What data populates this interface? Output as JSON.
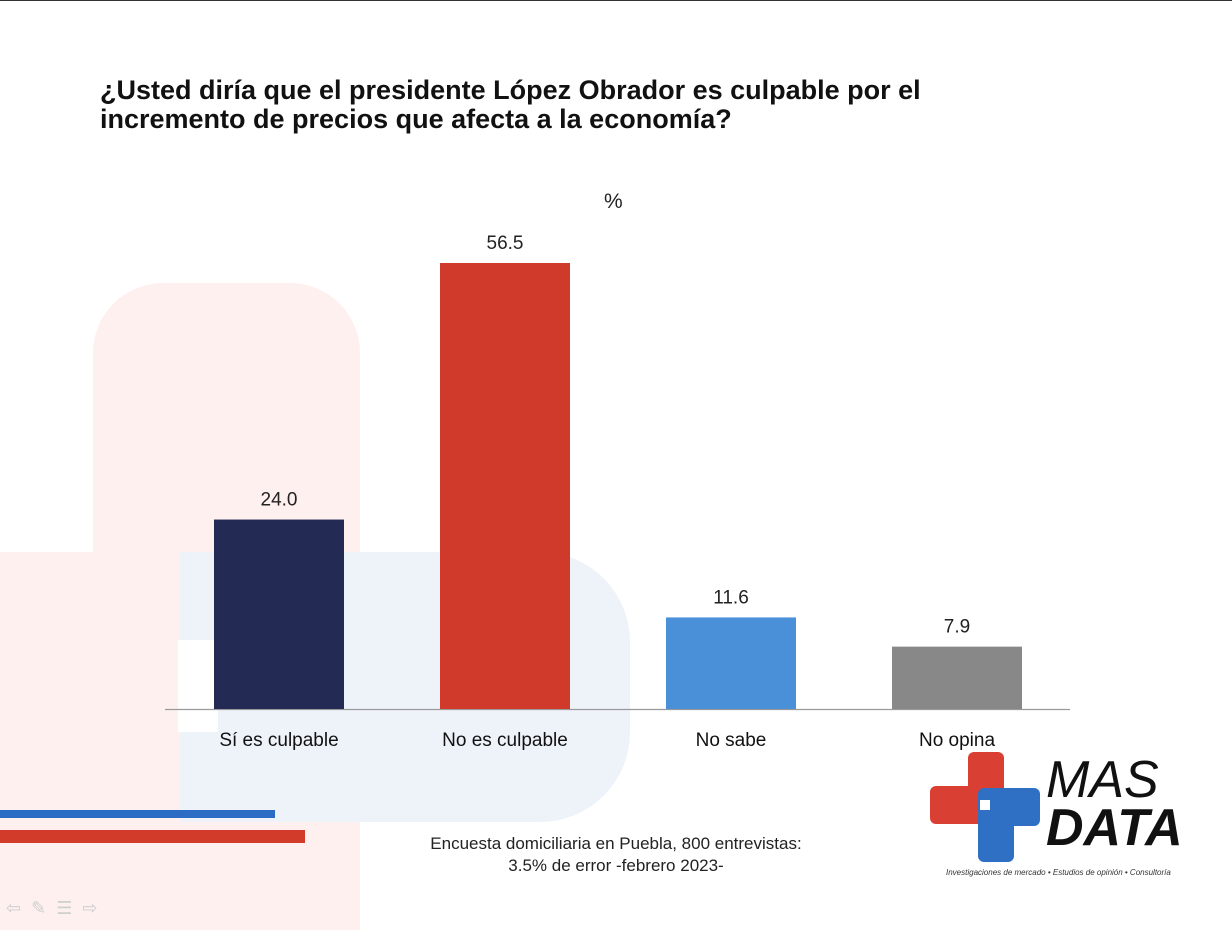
{
  "title": "¿Usted diría que el presidente López Obrador es culpable por el incremento de precios que afecta a la economía?",
  "unit_label": "%",
  "chart_data": {
    "type": "bar",
    "title": "¿Usted diría que el presidente López Obrador es culpable por el incremento de precios que afecta a la economía?",
    "categories": [
      "Sí es culpable",
      "No es culpable",
      "No sabe",
      "No opina"
    ],
    "values": [
      24.0,
      56.5,
      11.6,
      7.9
    ],
    "data_labels": [
      "24.0",
      "56.5",
      "11.6",
      "7.9"
    ],
    "colors": [
      "#232b55",
      "#d03a2b",
      "#4a90d9",
      "#888888"
    ],
    "ylim": [
      0,
      56.5
    ],
    "grid": false,
    "ylabel": "%"
  },
  "footnote": {
    "line1": "Encuesta domiciliaria en Puebla, 800 entrevistas:",
    "line2": "3.5% de error -febrero 2023-"
  },
  "logo": {
    "line1": "MAS",
    "line2": "DATA",
    "tagline": "Investigaciones de mercado • Estudios de opinión • Consultoría",
    "colors": {
      "red": "#d93f33",
      "blue": "#2f6fc4"
    }
  },
  "nav_icons": [
    "back-arrow-icon",
    "pen-icon",
    "menu-icon",
    "forward-arrow-icon"
  ]
}
